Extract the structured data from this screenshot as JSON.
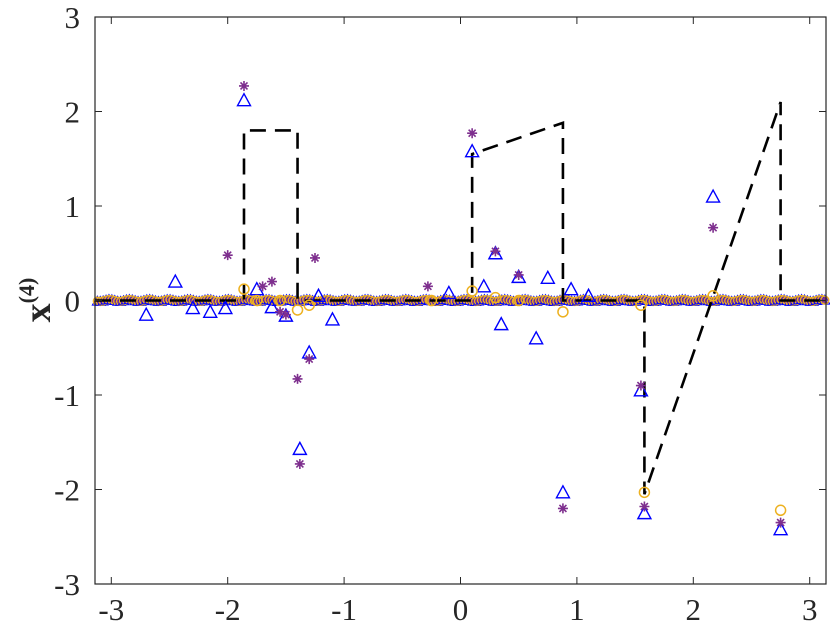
{
  "chart_data": {
    "type": "scatter",
    "title": "",
    "xlabel": "",
    "ylabel": {
      "base": "x",
      "superscript": "(4)"
    },
    "xlim": [
      -3.14,
      3.14
    ],
    "ylim": [
      -3,
      3
    ],
    "grid": false,
    "legend": "none",
    "xticks": [
      "-3",
      "-2",
      "-1",
      "0",
      "1",
      "2",
      "3"
    ],
    "xtick_values": [
      -3,
      -2,
      -1,
      0,
      1,
      2,
      3
    ],
    "yticks": [
      "-3",
      "-2",
      "-1",
      "0",
      "1",
      "2",
      "3"
    ],
    "ytick_values": [
      -3,
      -2,
      -1,
      0,
      1,
      2,
      3
    ],
    "series": [
      {
        "marker": "dashed-line",
        "color": "#000000",
        "x": [
          -3.14,
          -1.86,
          -1.86,
          -1.4,
          -1.4,
          0.1,
          0.1,
          0.88,
          0.88,
          1.58,
          1.58,
          2.75,
          2.75,
          3.14
        ],
        "y": [
          0,
          0,
          1.8,
          1.8,
          0,
          0,
          1.55,
          1.88,
          0,
          0,
          -2.05,
          2.1,
          0,
          0
        ]
      },
      {
        "marker": "triangle",
        "color": "#0000ff",
        "x": [
          -2.7,
          -2.45,
          -2.3,
          -2.15,
          -2.02,
          -1.86,
          -1.75,
          -1.62,
          -1.5,
          -1.38,
          -1.3,
          -1.1,
          0.1,
          0.2,
          0.3,
          0.35,
          0.5,
          0.65,
          0.75,
          0.88,
          0.95,
          1.1,
          1.55,
          1.58,
          2.17,
          2.75,
          -0.1,
          -1.22
        ],
        "y": [
          -0.15,
          0.2,
          -0.08,
          -0.12,
          -0.08,
          2.12,
          0.12,
          -0.07,
          -0.16,
          -1.57,
          -0.55,
          -0.2,
          1.58,
          0.15,
          0.5,
          -0.25,
          0.25,
          -0.4,
          0.24,
          -2.03,
          0.12,
          0.05,
          -0.95,
          -2.25,
          1.1,
          -2.42,
          0.08,
          0.05
        ]
      },
      {
        "marker": "asterisk",
        "color": "#7e2f8e",
        "x": [
          -2.0,
          -1.86,
          -1.7,
          -1.62,
          -1.5,
          -1.4,
          -1.38,
          -1.3,
          -1.25,
          0.1,
          0.3,
          0.5,
          0.88,
          1.55,
          1.58,
          2.17,
          2.75,
          -0.28,
          -1.55
        ],
        "y": [
          0.48,
          2.27,
          0.15,
          0.2,
          -0.15,
          -0.83,
          -1.73,
          -0.62,
          0.45,
          1.77,
          0.52,
          0.27,
          -2.2,
          -0.9,
          -2.18,
          0.77,
          -2.35,
          0.15,
          -0.12
        ]
      },
      {
        "marker": "circle",
        "color": "#edb120",
        "x": [
          -1.86,
          -1.75,
          -1.55,
          -1.4,
          -1.3,
          -0.25,
          0.1,
          0.3,
          0.5,
          0.88,
          1.55,
          1.58,
          2.17,
          2.75
        ],
        "y": [
          0.12,
          0.0,
          0.0,
          -0.1,
          -0.05,
          0.0,
          0.1,
          0.03,
          0.0,
          -0.12,
          -0.05,
          -2.03,
          0.05,
          -2.22
        ]
      }
    ]
  }
}
